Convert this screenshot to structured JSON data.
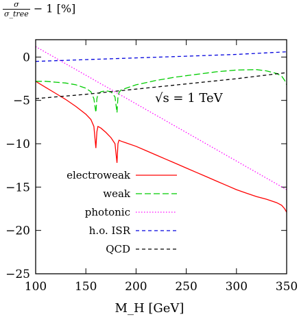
{
  "chart_data": {
    "type": "line",
    "title": "",
    "ylabel": {
      "num": "σ",
      "den": "σ_tree",
      "rest": "− 1 [%]"
    },
    "xlabel": "M_H [GeV]",
    "xlim": [
      100,
      350
    ],
    "ylim": [
      -25,
      2
    ],
    "xticks": [
      100,
      150,
      200,
      250,
      300,
      350
    ],
    "yticks": [
      0,
      -5,
      -10,
      -15,
      -20,
      -25
    ],
    "annotation": "√s = 1 TeV",
    "legend_position": "bottom-left",
    "series": [
      {
        "name": "electroweak",
        "color": "#ff0000",
        "dash": "solid",
        "x": [
          100,
          110,
          120,
          130,
          140,
          150,
          155,
          158,
          160,
          161,
          162,
          165,
          170,
          175,
          179,
          181,
          182,
          183,
          185,
          190,
          200,
          210,
          220,
          230,
          240,
          250,
          260,
          270,
          280,
          290,
          300,
          310,
          320,
          330,
          340,
          345,
          348,
          350
        ],
        "y": [
          -2.8,
          -3.5,
          -4.2,
          -4.9,
          -5.7,
          -6.6,
          -7.2,
          -8.0,
          -10.5,
          -8.6,
          -8.0,
          -8.2,
          -8.7,
          -9.3,
          -10.0,
          -12.2,
          -10.0,
          -9.6,
          -9.7,
          -9.9,
          -10.3,
          -10.8,
          -11.3,
          -11.8,
          -12.3,
          -12.8,
          -13.3,
          -13.8,
          -14.3,
          -14.8,
          -15.3,
          -15.7,
          -16.1,
          -16.4,
          -16.8,
          -17.1,
          -17.5,
          -17.9
        ]
      },
      {
        "name": "weak",
        "color": "#00cc00",
        "dash": "long",
        "x": [
          100,
          110,
          120,
          130,
          140,
          150,
          155,
          158,
          160,
          161,
          162,
          165,
          170,
          175,
          179,
          181,
          182,
          183,
          185,
          190,
          200,
          220,
          240,
          260,
          280,
          300,
          320,
          330,
          340,
          345,
          348,
          350
        ],
        "y": [
          -2.8,
          -2.8,
          -2.9,
          -3.0,
          -3.2,
          -3.6,
          -4.0,
          -4.8,
          -6.4,
          -4.8,
          -4.3,
          -4.0,
          -3.9,
          -4.0,
          -4.6,
          -6.4,
          -4.6,
          -4.1,
          -3.8,
          -3.6,
          -3.2,
          -2.7,
          -2.3,
          -2.0,
          -1.7,
          -1.5,
          -1.45,
          -1.6,
          -1.9,
          -2.2,
          -2.7,
          -3.2
        ]
      },
      {
        "name": "photonic",
        "color": "#ff00ff",
        "dash": "dot",
        "x": [
          100,
          150,
          200,
          250,
          300,
          350
        ],
        "y": [
          1.2,
          -2.1,
          -5.4,
          -8.7,
          -12.0,
          -15.3
        ]
      },
      {
        "name": "h.o. ISR",
        "color": "#0000dd",
        "dash": "dash",
        "x": [
          100,
          150,
          200,
          250,
          300,
          350
        ],
        "y": [
          -0.5,
          -0.3,
          -0.1,
          0.1,
          0.3,
          0.6
        ]
      },
      {
        "name": "QCD",
        "color": "#000000",
        "dash": "dash",
        "x": [
          100,
          150,
          200,
          250,
          300,
          350
        ],
        "y": [
          -4.8,
          -4.3,
          -3.7,
          -3.1,
          -2.5,
          -1.8
        ]
      }
    ]
  }
}
